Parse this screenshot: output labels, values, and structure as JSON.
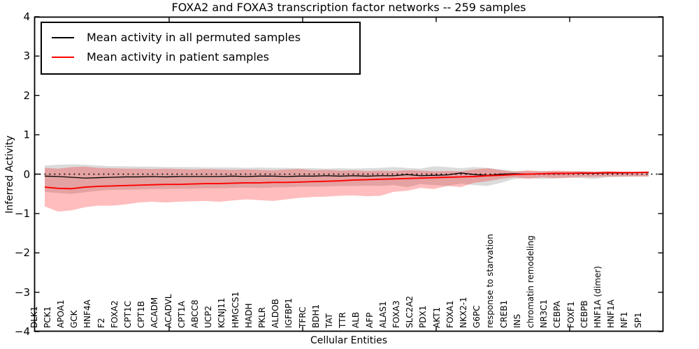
{
  "title": "FOXA2 and FOXA3 transcription factor networks -- 259 samples",
  "axes": {
    "ylabel": "Inferred Activity",
    "xlabel": "Cellular Entities",
    "yticks": [
      {
        "v": 4,
        "label": "4"
      },
      {
        "v": 3,
        "label": "3"
      },
      {
        "v": 2,
        "label": "2"
      },
      {
        "v": 1,
        "label": "1"
      },
      {
        "v": 0,
        "label": "0"
      },
      {
        "v": -1,
        "label": "−1"
      },
      {
        "v": -2,
        "label": "−2"
      },
      {
        "v": -3,
        "label": "−3"
      },
      {
        "v": -4,
        "label": "−4"
      }
    ]
  },
  "legend": {
    "items": [
      {
        "label": "Mean activity in all permuted samples",
        "color": "#000000"
      },
      {
        "label": "Mean activity in patient samples",
        "color": "#ff0000"
      }
    ]
  },
  "chart_data": {
    "type": "line",
    "title": "FOXA2 and FOXA3 transcription factor networks -- 259 samples",
    "xlabel": "Cellular Entities",
    "ylabel": "Inferred Activity",
    "ylim": [
      -4,
      4
    ],
    "grid": false,
    "legend_position": "upper left",
    "zero_line": {
      "y": 0,
      "style": "dotted",
      "color": "#000000"
    },
    "categories": [
      "DLK1",
      "PCK1",
      "APOA1",
      "GCK",
      "HNF4A",
      "F2",
      "FOXA2",
      "CPT1C",
      "CPT1B",
      "ACADM",
      "ACADVL",
      "CPT1A",
      "ABCC8",
      "UCP2",
      "KCNJ11",
      "HMGCS1",
      "HADH",
      "PKLR",
      "ALDOB",
      "IGFBP1",
      "TFRC",
      "BDH1",
      "TAT",
      "TTR",
      "ALB",
      "AFP",
      "ALAS1",
      "FOXA3",
      "SLC2A2",
      "PDX1",
      "AKT1",
      "FOXA1",
      "NKX2-1",
      "G6PC",
      "response to starvation",
      "CREB1",
      "INS",
      "chromatin remodeling",
      "NR3C1",
      "CEBPA",
      "FOXF1",
      "CEBPB",
      "HNF1A (dimer)",
      "HNF1A",
      "NF1",
      "SP1"
    ],
    "series": [
      {
        "name": "Mean activity in all permuted samples",
        "color": "#000000",
        "band_color": "rgba(0,0,0,0.14)",
        "values": [
          -0.05,
          -0.06,
          -0.08,
          -0.1,
          -0.09,
          -0.08,
          -0.07,
          -0.07,
          -0.06,
          -0.07,
          -0.06,
          -0.06,
          -0.06,
          -0.06,
          -0.05,
          -0.06,
          -0.05,
          -0.05,
          -0.06,
          -0.05,
          -0.05,
          -0.04,
          -0.05,
          -0.04,
          -0.05,
          -0.04,
          -0.04,
          -0.01,
          -0.04,
          -0.03,
          -0.02,
          0.03,
          -0.01,
          -0.03,
          0.0,
          0.01,
          0.0,
          0.01,
          0.01,
          0.02,
          0.02,
          0.02,
          0.03,
          0.03,
          0.04,
          0.04
        ],
        "band_upper": [
          0.22,
          0.24,
          0.25,
          0.24,
          0.22,
          0.2,
          0.2,
          0.19,
          0.19,
          0.18,
          0.18,
          0.18,
          0.17,
          0.17,
          0.17,
          0.16,
          0.17,
          0.16,
          0.16,
          0.15,
          0.15,
          0.14,
          0.15,
          0.14,
          0.15,
          0.16,
          0.18,
          0.16,
          0.14,
          0.2,
          0.18,
          0.15,
          0.18,
          0.16,
          0.12,
          0.08,
          0.07,
          0.08,
          0.07,
          0.07,
          0.08,
          0.07,
          0.07,
          0.06,
          0.06,
          0.06
        ],
        "band_lower": [
          -0.45,
          -0.48,
          -0.5,
          -0.46,
          -0.42,
          -0.4,
          -0.4,
          -0.39,
          -0.38,
          -0.38,
          -0.37,
          -0.37,
          -0.36,
          -0.36,
          -0.35,
          -0.34,
          -0.35,
          -0.34,
          -0.33,
          -0.32,
          -0.32,
          -0.31,
          -0.3,
          -0.3,
          -0.29,
          -0.3,
          -0.28,
          -0.33,
          -0.25,
          -0.28,
          -0.3,
          -0.24,
          -0.28,
          -0.3,
          -0.22,
          -0.12,
          -0.1,
          -0.12,
          -0.11,
          -0.09,
          -0.1,
          -0.12,
          -0.08,
          -0.07,
          -0.06,
          -0.06
        ]
      },
      {
        "name": "Mean activity in patient samples",
        "color": "#ff0000",
        "band_color": "rgba(255,0,0,0.26)",
        "values": [
          -0.33,
          -0.36,
          -0.37,
          -0.33,
          -0.31,
          -0.3,
          -0.29,
          -0.28,
          -0.27,
          -0.26,
          -0.26,
          -0.25,
          -0.24,
          -0.24,
          -0.23,
          -0.22,
          -0.22,
          -0.21,
          -0.21,
          -0.2,
          -0.19,
          -0.18,
          -0.17,
          -0.15,
          -0.14,
          -0.13,
          -0.12,
          -0.11,
          -0.1,
          -0.09,
          -0.08,
          -0.07,
          -0.06,
          -0.04,
          -0.03,
          -0.01,
          0.0,
          0.01,
          0.02,
          0.02,
          0.03,
          0.03,
          0.04,
          0.04,
          0.04,
          0.05
        ],
        "band_upper": [
          0.16,
          0.14,
          0.18,
          0.19,
          0.16,
          0.15,
          0.14,
          0.14,
          0.13,
          0.14,
          0.13,
          0.12,
          0.13,
          0.12,
          0.11,
          0.12,
          0.11,
          0.1,
          0.12,
          0.13,
          0.1,
          0.11,
          0.09,
          0.1,
          0.08,
          0.09,
          0.08,
          0.1,
          0.09,
          0.07,
          0.08,
          0.07,
          0.12,
          0.15,
          0.1,
          0.06,
          0.1,
          0.07,
          0.09,
          0.08,
          0.07,
          0.06,
          0.07,
          0.06,
          0.06,
          0.06
        ],
        "band_lower": [
          -0.82,
          -0.95,
          -0.92,
          -0.84,
          -0.8,
          -0.8,
          -0.77,
          -0.72,
          -0.7,
          -0.72,
          -0.7,
          -0.69,
          -0.68,
          -0.7,
          -0.67,
          -0.64,
          -0.66,
          -0.68,
          -0.64,
          -0.6,
          -0.58,
          -0.57,
          -0.55,
          -0.54,
          -0.56,
          -0.55,
          -0.45,
          -0.42,
          -0.35,
          -0.38,
          -0.3,
          -0.33,
          -0.22,
          -0.18,
          -0.12,
          -0.08,
          -0.12,
          -0.08,
          -0.1,
          -0.09,
          -0.07,
          -0.07,
          -0.06,
          -0.06,
          -0.06,
          -0.06
        ]
      }
    ]
  }
}
